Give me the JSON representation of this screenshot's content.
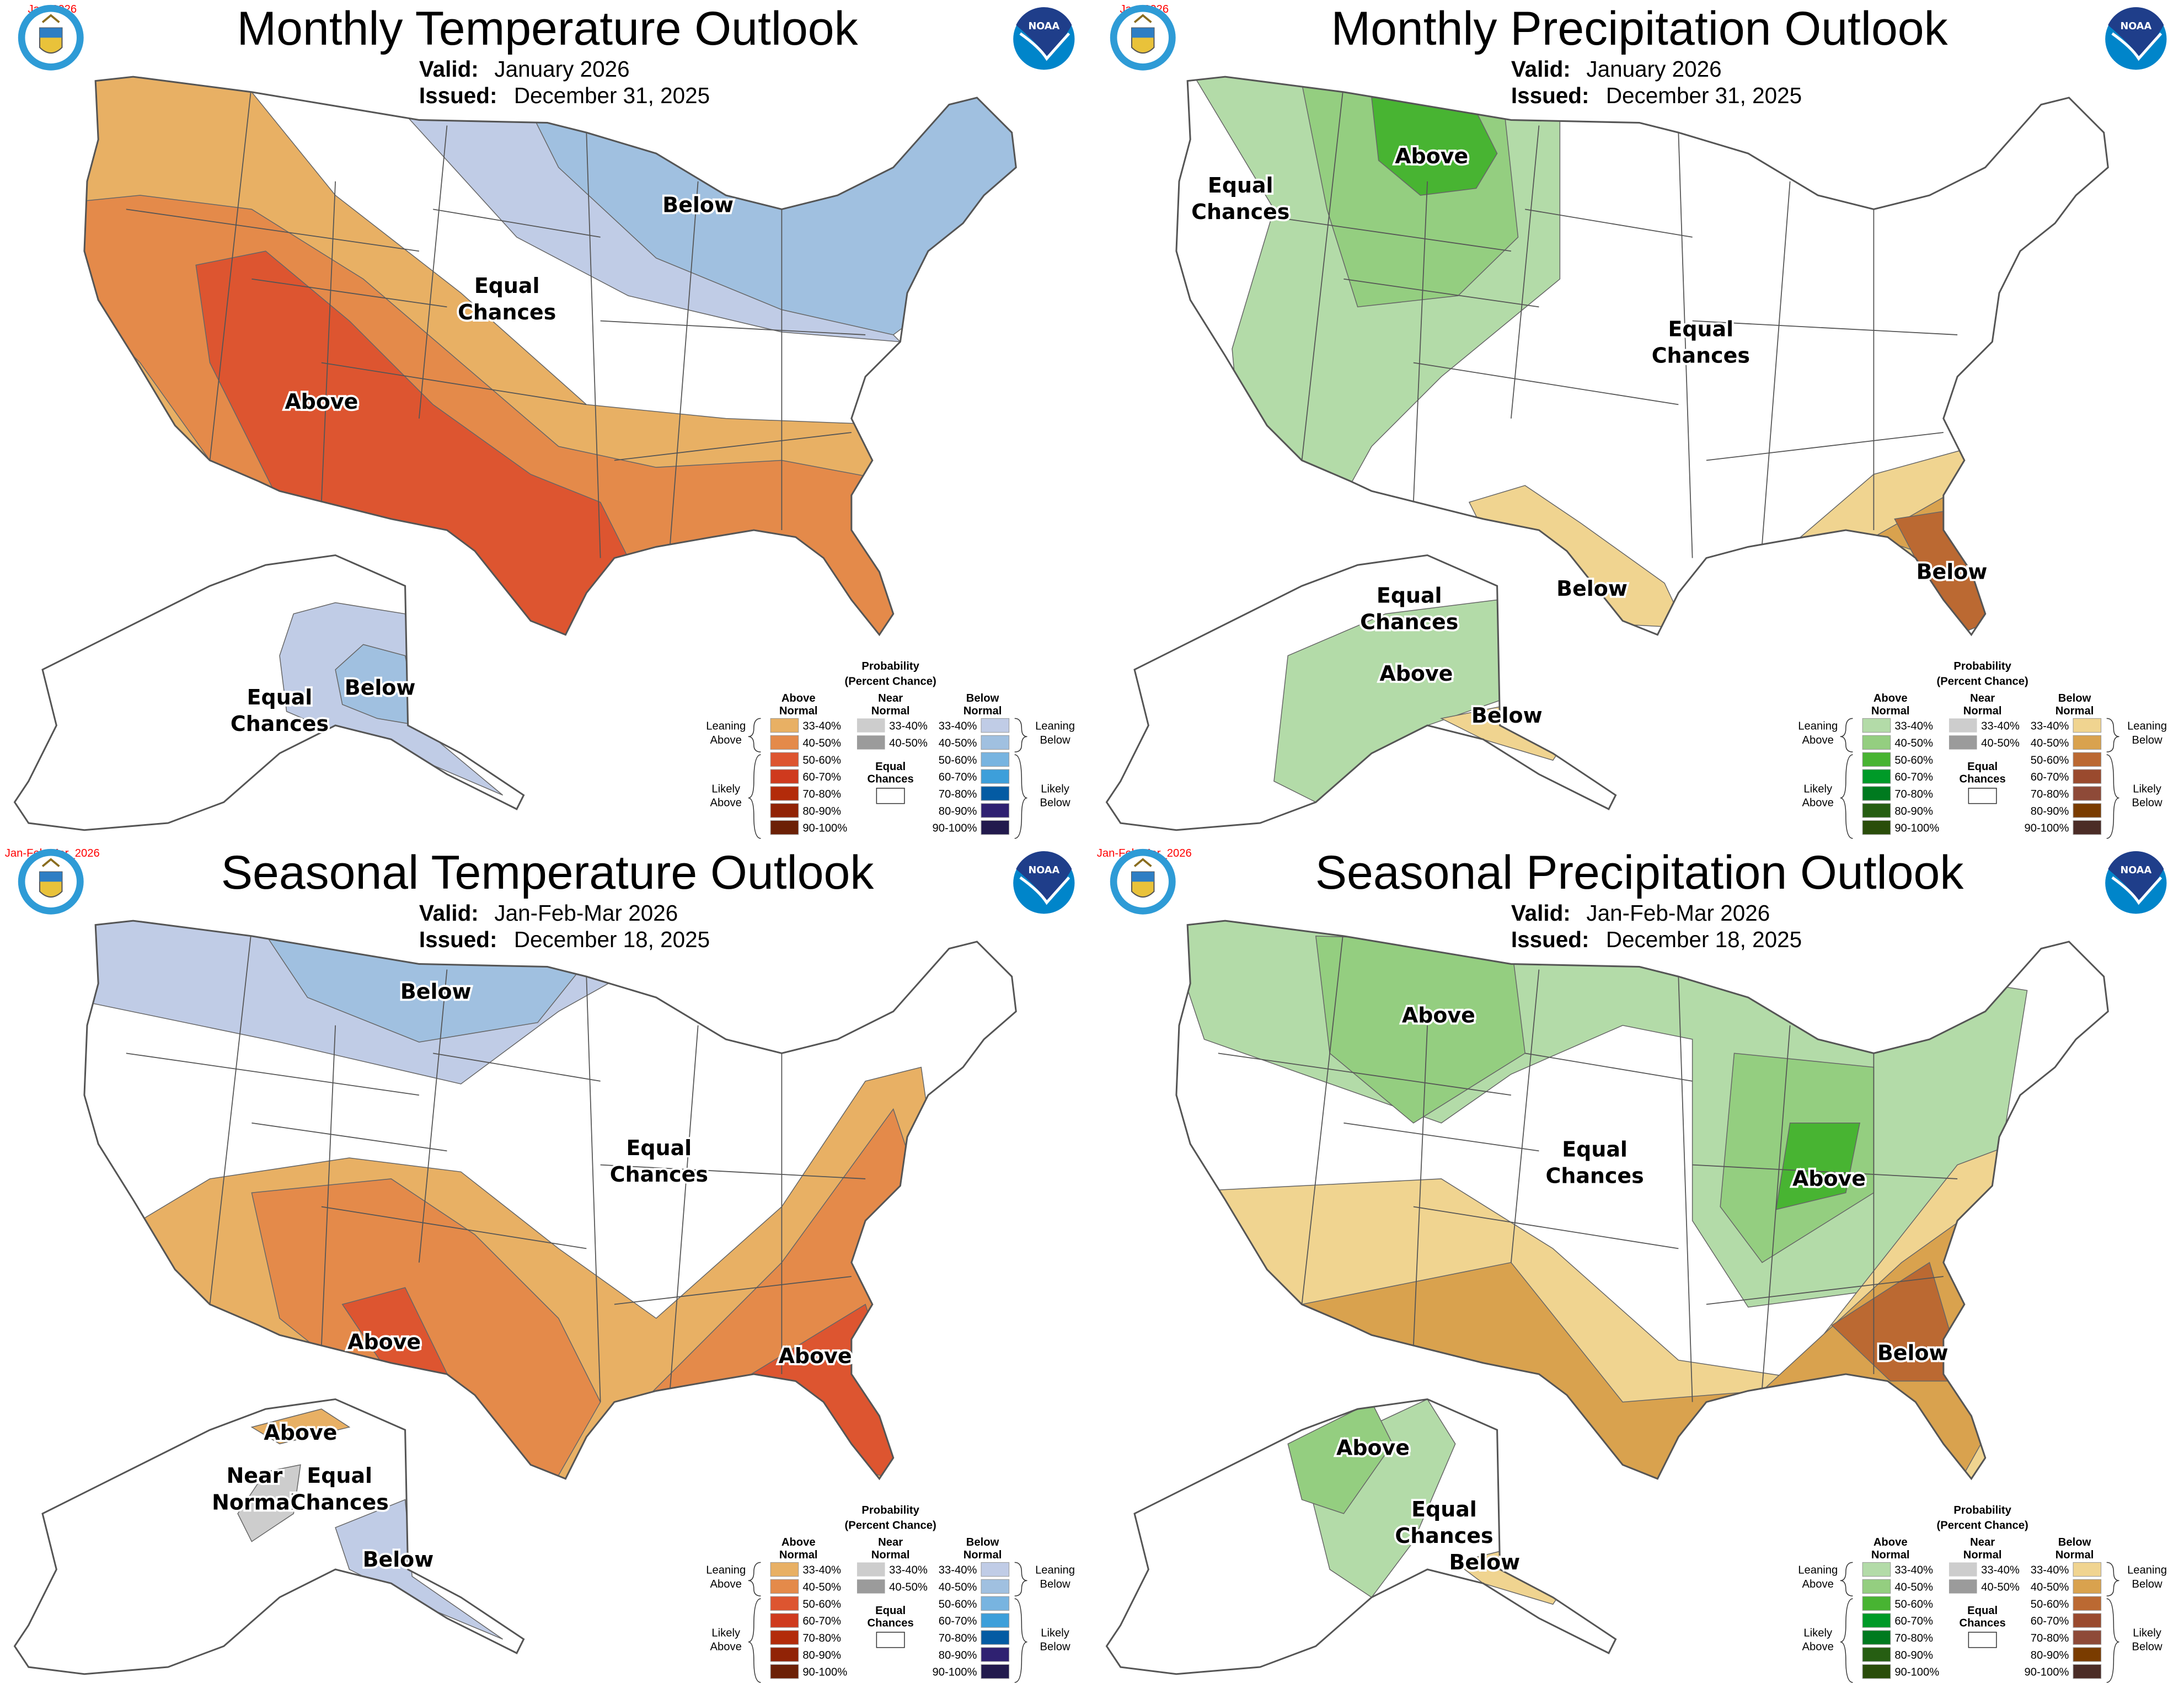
{
  "panels": [
    {
      "id": "monthly-temperature",
      "kind": "temperature",
      "tag": "Jan_2026",
      "title": "Monthly Temperature Outlook",
      "valid_label": "Valid:",
      "valid_value": "January 2026",
      "issued_label": "Issued:",
      "issued_value": "December 31, 2025",
      "map_labels": [
        {
          "lines": [
            "Below"
          ]
        },
        {
          "lines": [
            "Equal",
            "Chances"
          ]
        },
        {
          "lines": [
            "Above"
          ]
        },
        {
          "lines": [
            "Equal",
            "Chances"
          ]
        },
        {
          "lines": [
            "Below"
          ]
        }
      ]
    },
    {
      "id": "monthly-precipitation",
      "kind": "precipitation",
      "tag": "Jan_2026",
      "title": "Monthly Precipitation Outlook",
      "valid_label": "Valid:",
      "valid_value": "January 2026",
      "issued_label": "Issued:",
      "issued_value": "December 31, 2025",
      "map_labels": [
        {
          "lines": [
            "Above"
          ]
        },
        {
          "lines": [
            "Equal",
            "Chances"
          ]
        },
        {
          "lines": [
            "Equal",
            "Chances"
          ]
        },
        {
          "lines": [
            "Below"
          ]
        },
        {
          "lines": [
            "Below"
          ]
        },
        {
          "lines": [
            "Equal",
            "Chances"
          ]
        },
        {
          "lines": [
            "Above"
          ]
        },
        {
          "lines": [
            "Below"
          ]
        }
      ]
    },
    {
      "id": "seasonal-temperature",
      "kind": "temperature",
      "tag": "Jan-Feb-Mar_2026",
      "title": "Seasonal Temperature Outlook",
      "valid_label": "Valid:",
      "valid_value": "Jan-Feb-Mar 2026",
      "issued_label": "Issued:",
      "issued_value": "December 18, 2025",
      "map_labels": [
        {
          "lines": [
            "Below"
          ]
        },
        {
          "lines": [
            "Equal",
            "Chances"
          ]
        },
        {
          "lines": [
            "Above"
          ]
        },
        {
          "lines": [
            "Above"
          ]
        },
        {
          "lines": [
            "Above"
          ]
        },
        {
          "lines": [
            "Near",
            "Normal"
          ]
        },
        {
          "lines": [
            "Equal",
            "Chances"
          ]
        },
        {
          "lines": [
            "Below"
          ]
        }
      ]
    },
    {
      "id": "seasonal-precipitation",
      "kind": "precipitation",
      "tag": "Jan-Feb-Mar_2026",
      "title": "Seasonal Precipitation Outlook",
      "valid_label": "Valid:",
      "valid_value": "Jan-Feb-Mar 2026",
      "issued_label": "Issued:",
      "issued_value": "December 18, 2025",
      "map_labels": [
        {
          "lines": [
            "Above"
          ]
        },
        {
          "lines": [
            "Equal",
            "Chances"
          ]
        },
        {
          "lines": [
            "Above"
          ]
        },
        {
          "lines": [
            "Below"
          ]
        },
        {
          "lines": [
            "Above"
          ]
        },
        {
          "lines": [
            "Equal",
            "Chances"
          ]
        },
        {
          "lines": [
            "Below"
          ]
        }
      ]
    }
  ],
  "logos": {
    "noaa_text": "NOAA",
    "seal": "Department of Commerce seal"
  },
  "legend": {
    "title": "Probability",
    "subtitle": "(Percent Chance)",
    "above_header": [
      "Above",
      "Normal"
    ],
    "near_header": [
      "Near",
      "Normal"
    ],
    "below_header": [
      "Below",
      "Normal"
    ],
    "ranges": [
      "33-40%",
      "40-50%",
      "50-60%",
      "60-70%",
      "70-80%",
      "80-90%",
      "90-100%"
    ],
    "near_ranges": [
      "33-40%",
      "40-50%"
    ],
    "near_colors": [
      "#CDCDCD",
      "#9B9B9B"
    ],
    "equal_label": [
      "Equal",
      "Chances"
    ],
    "leaning_above": [
      "Leaning",
      "Above"
    ],
    "likely_above": [
      "Likely",
      "Above"
    ],
    "leaning_below": [
      "Leaning",
      "Below"
    ],
    "likely_below": [
      "Likely",
      "Below"
    ]
  },
  "colors": {
    "temperature": {
      "above": [
        "#E8B064",
        "#E48A4A",
        "#DD5530",
        "#CF3A1E",
        "#B32B0A",
        "#912306",
        "#6C2006"
      ],
      "below": [
        "#C0CCE6",
        "#A0C0E0",
        "#78B4E0",
        "#3D9FDA",
        "#045BA3",
        "#2F2171",
        "#221A4D"
      ]
    },
    "precipitation": {
      "above": [
        "#B3DBA8",
        "#94CE80",
        "#48B432",
        "#009A28",
        "#007A1F",
        "#265E12",
        "#2A4D0A"
      ],
      "below": [
        "#F0D490",
        "#D9A24E",
        "#BB6932",
        "#9A4A2E",
        "#8E4A38",
        "#7A3C00",
        "#4B2C26"
      ]
    },
    "tag": "#FF0000",
    "outline": "#555555"
  }
}
